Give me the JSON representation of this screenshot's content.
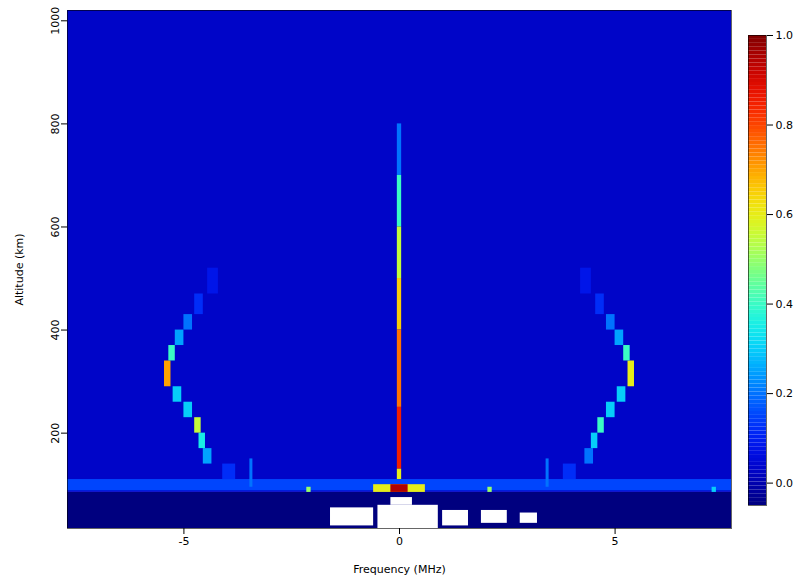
{
  "chart_data": {
    "type": "heatmap",
    "x_label": "Frequency (MHz)",
    "y_label": "Altitude (km)",
    "xlim": [
      -7.7,
      7.7
    ],
    "xticks": [
      -5,
      0,
      5
    ],
    "ylim": [
      15,
      1020
    ],
    "yticks": [
      200,
      400,
      600,
      800,
      1000
    ],
    "colorbar": {
      "range": [
        -0.05,
        1.0
      ],
      "ticks": [
        {
          "value": 0,
          "label": "0.0"
        },
        {
          "value": 0.2,
          "label": "0.2"
        },
        {
          "value": 0.4,
          "label": "0.4"
        },
        {
          "value": 0.6,
          "label": "0.6"
        },
        {
          "value": 0.8,
          "label": "0.8"
        },
        {
          "value": 1,
          "label": "1.0"
        }
      ]
    },
    "cells": [
      {
        "x1": -7.7,
        "x2": 7.7,
        "y1": 15,
        "y2": 85,
        "value": -0.05
      },
      {
        "x1": -7.7,
        "x2": 7.7,
        "y1": 85,
        "y2": 1020,
        "value": 0.03
      },
      {
        "x1": -7.7,
        "x2": 7.7,
        "y1": 88,
        "y2": 110,
        "value": 0.15
      },
      {
        "x1": -0.05,
        "x2": 0.05,
        "y1": 700,
        "y2": 800,
        "value": 0.2
      },
      {
        "x1": -0.05,
        "x2": 0.05,
        "y1": 600,
        "y2": 700,
        "value": 0.4
      },
      {
        "x1": -0.05,
        "x2": 0.05,
        "y1": 500,
        "y2": 600,
        "value": 0.55
      },
      {
        "x1": -0.05,
        "x2": 0.05,
        "y1": 400,
        "y2": 500,
        "value": 0.65
      },
      {
        "x1": -0.05,
        "x2": 0.05,
        "y1": 250,
        "y2": 400,
        "value": 0.75
      },
      {
        "x1": -0.05,
        "x2": 0.05,
        "y1": 130,
        "y2": 250,
        "value": 0.85
      },
      {
        "x1": -0.05,
        "x2": 0.05,
        "y1": 110,
        "y2": 130,
        "value": 0.6
      },
      {
        "x1": -0.6,
        "x2": 0.6,
        "y1": 85,
        "y2": 100,
        "value": 0.6
      },
      {
        "x1": -0.2,
        "x2": 0.2,
        "y1": 85,
        "y2": 100,
        "value": 0.95
      },
      {
        "x1": -3.47,
        "x2": -3.4,
        "y1": 95,
        "y2": 150,
        "value": 0.2
      },
      {
        "x1": 3.4,
        "x2": 3.47,
        "y1": 95,
        "y2": 150,
        "value": 0.2
      },
      {
        "x1": -2.15,
        "x2": -2.05,
        "y1": 85,
        "y2": 95,
        "value": 0.5
      },
      {
        "x1": 2.05,
        "x2": 2.15,
        "y1": 85,
        "y2": 95,
        "value": 0.5
      },
      {
        "x1": 7.25,
        "x2": 7.35,
        "y1": 85,
        "y2": 95,
        "value": 0.3
      },
      {
        "x1": -4.1,
        "x2": -3.8,
        "y1": 110,
        "y2": 140,
        "value": 0.12
      },
      {
        "x1": -4.55,
        "x2": -4.35,
        "y1": 140,
        "y2": 170,
        "value": 0.25
      },
      {
        "x1": -4.65,
        "x2": -4.5,
        "y1": 170,
        "y2": 200,
        "value": 0.35
      },
      {
        "x1": -4.75,
        "x2": -4.6,
        "y1": 200,
        "y2": 230,
        "value": 0.55
      },
      {
        "x1": -5.0,
        "x2": -4.8,
        "y1": 230,
        "y2": 260,
        "value": 0.3
      },
      {
        "x1": -5.25,
        "x2": -5.05,
        "y1": 260,
        "y2": 290,
        "value": 0.3
      },
      {
        "x1": -5.45,
        "x2": -5.3,
        "y1": 290,
        "y2": 340,
        "value": 0.7
      },
      {
        "x1": -5.35,
        "x2": -5.2,
        "y1": 340,
        "y2": 370,
        "value": 0.4
      },
      {
        "x1": -5.2,
        "x2": -5.0,
        "y1": 370,
        "y2": 400,
        "value": 0.25
      },
      {
        "x1": -5.0,
        "x2": -4.8,
        "y1": 400,
        "y2": 430,
        "value": 0.2
      },
      {
        "x1": -4.75,
        "x2": -4.55,
        "y1": 430,
        "y2": 470,
        "value": 0.12
      },
      {
        "x1": -4.45,
        "x2": -4.2,
        "y1": 470,
        "y2": 520,
        "value": 0.08
      },
      {
        "x1": 3.8,
        "x2": 4.1,
        "y1": 110,
        "y2": 140,
        "value": 0.12
      },
      {
        "x1": 4.3,
        "x2": 4.5,
        "y1": 140,
        "y2": 170,
        "value": 0.2
      },
      {
        "x1": 4.45,
        "x2": 4.6,
        "y1": 170,
        "y2": 200,
        "value": 0.3
      },
      {
        "x1": 4.6,
        "x2": 4.75,
        "y1": 200,
        "y2": 230,
        "value": 0.4
      },
      {
        "x1": 4.8,
        "x2": 5.0,
        "y1": 230,
        "y2": 260,
        "value": 0.3
      },
      {
        "x1": 5.05,
        "x2": 5.25,
        "y1": 260,
        "y2": 290,
        "value": 0.3
      },
      {
        "x1": 5.3,
        "x2": 5.45,
        "y1": 290,
        "y2": 340,
        "value": 0.6
      },
      {
        "x1": 5.2,
        "x2": 5.35,
        "y1": 340,
        "y2": 370,
        "value": 0.4
      },
      {
        "x1": 5.0,
        "x2": 5.2,
        "y1": 370,
        "y2": 400,
        "value": 0.25
      },
      {
        "x1": 4.8,
        "x2": 5.0,
        "y1": 400,
        "y2": 430,
        "value": 0.2
      },
      {
        "x1": 4.55,
        "x2": 4.75,
        "y1": 430,
        "y2": 470,
        "value": 0.12
      },
      {
        "x1": 4.2,
        "x2": 4.45,
        "y1": 470,
        "y2": 520,
        "value": 0.08
      },
      {
        "x1": -1.6,
        "x2": -0.6,
        "y1": 20,
        "y2": 55,
        "value": null
      },
      {
        "x1": -0.5,
        "x2": 0.9,
        "y1": 15,
        "y2": 60,
        "value": null
      },
      {
        "x1": 1.0,
        "x2": 1.6,
        "y1": 20,
        "y2": 50,
        "value": null
      },
      {
        "x1": 1.9,
        "x2": 2.5,
        "y1": 25,
        "y2": 50,
        "value": null
      },
      {
        "x1": 2.8,
        "x2": 3.2,
        "y1": 25,
        "y2": 45,
        "value": null
      },
      {
        "x1": -0.2,
        "x2": 0.3,
        "y1": 60,
        "y2": 75,
        "value": null
      }
    ]
  }
}
